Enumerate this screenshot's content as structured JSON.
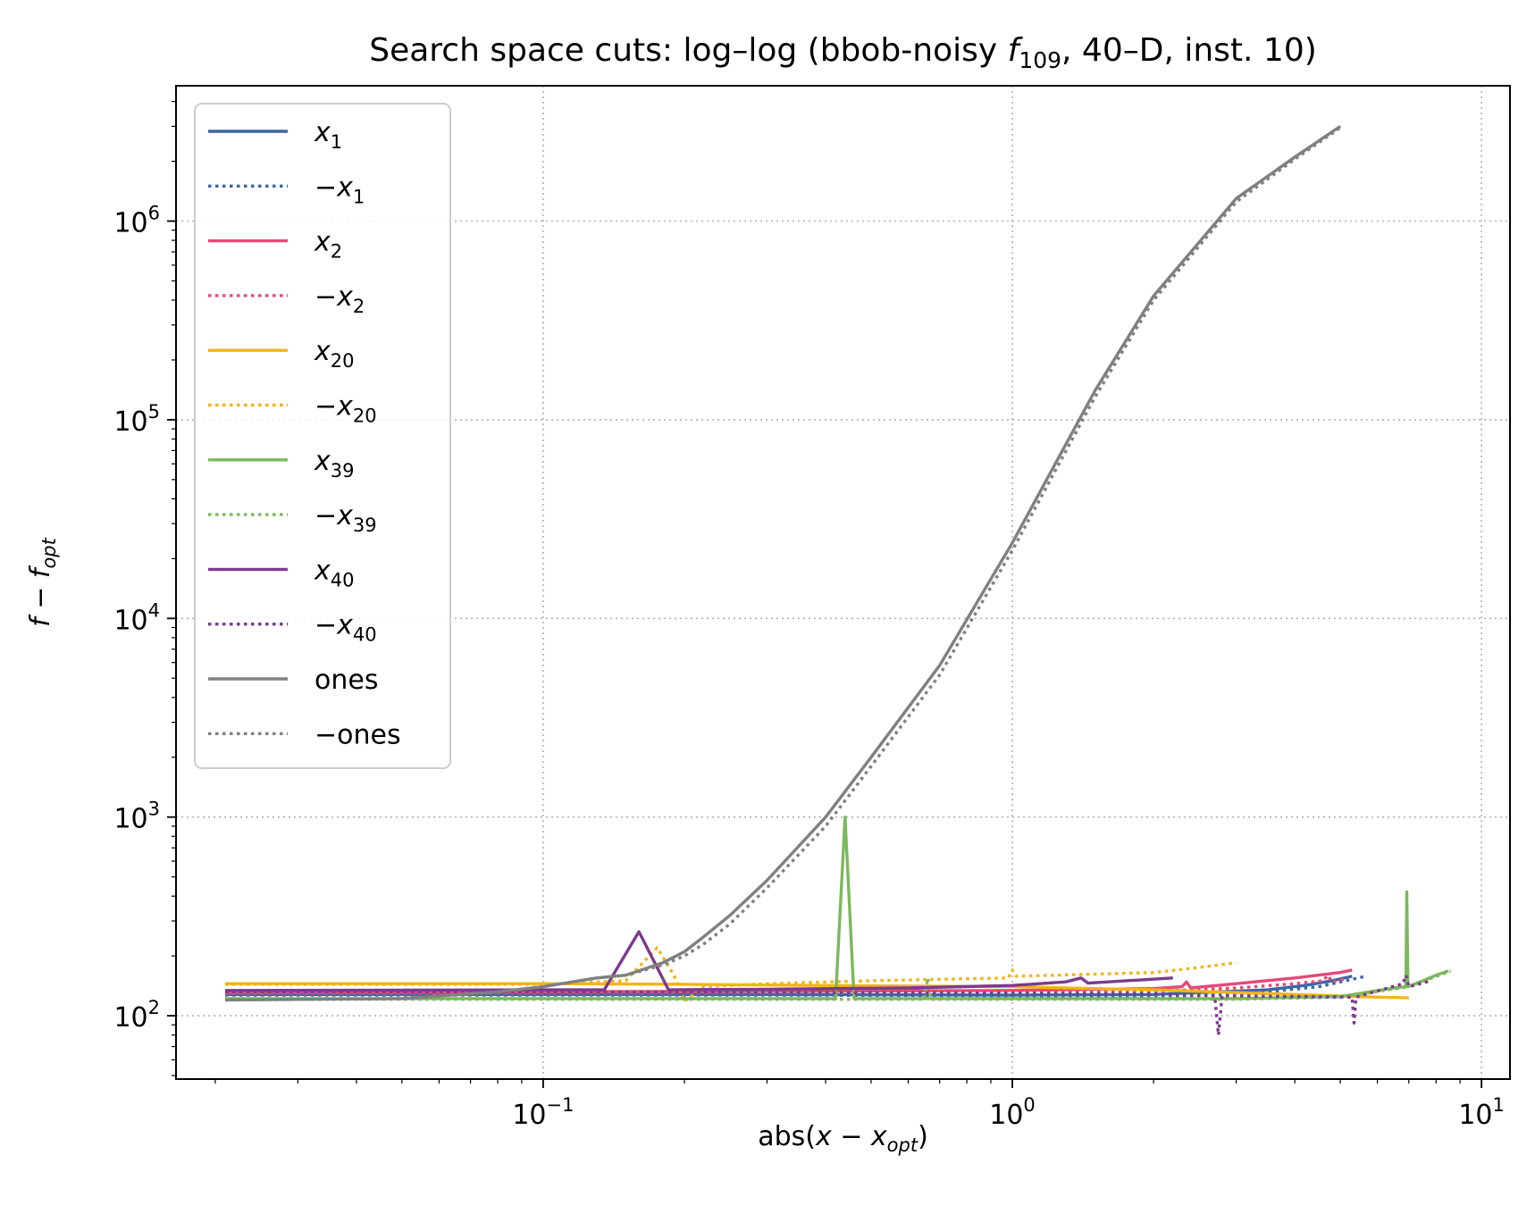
{
  "chart_data": {
    "type": "line",
    "title": "Search space cuts: log–log (bbob-noisy f109, 40–D, inst. 10)",
    "title_parts": {
      "before": "Search space cuts: log–log (bbob-noisy ",
      "f": "f",
      "sub": "109",
      "after": ", 40–D, inst. 10)"
    },
    "xlabel": {
      "pre": "abs(",
      "main": "x − x",
      "sub": "opt",
      "post": ")"
    },
    "ylabel": {
      "main": "f − f",
      "sub": "opt"
    },
    "xscale": "log",
    "yscale": "log",
    "xlim": [
      0.0165,
      11.5
    ],
    "ylim": [
      48,
      4800000
    ],
    "xticks": [
      {
        "value": 0.1,
        "base": "10",
        "exp": "−1"
      },
      {
        "value": 1,
        "base": "10",
        "exp": "0"
      },
      {
        "value": 10,
        "base": "10",
        "exp": "1"
      }
    ],
    "yticks": [
      {
        "value": 100,
        "base": "10",
        "exp": "2"
      },
      {
        "value": 1000,
        "base": "10",
        "exp": "3"
      },
      {
        "value": 10000,
        "base": "10",
        "exp": "4"
      },
      {
        "value": 100000,
        "base": "10",
        "exp": "5"
      },
      {
        "value": 1000000,
        "base": "10",
        "exp": "6"
      }
    ],
    "grid": true,
    "legend_position": "top-left",
    "series": [
      {
        "name": "x",
        "sub": "1",
        "neg": false,
        "color": "#3b67a8",
        "dash": "solid",
        "points": [
          [
            0.021,
            128
          ],
          [
            0.05,
            128
          ],
          [
            0.1,
            128
          ],
          [
            0.3,
            128
          ],
          [
            1,
            127
          ],
          [
            2,
            128
          ],
          [
            3.5,
            135
          ],
          [
            4.2,
            142
          ],
          [
            4.8,
            150
          ],
          [
            5.3,
            158
          ]
        ]
      },
      {
        "name": "x",
        "sub": "1",
        "neg": true,
        "color": "#3b67a8",
        "dash": "dotted",
        "points": [
          [
            0.021,
            127
          ],
          [
            0.05,
            127
          ],
          [
            0.1,
            127
          ],
          [
            0.3,
            127
          ],
          [
            1,
            126
          ],
          [
            2,
            124
          ],
          [
            3,
            128
          ],
          [
            3.5,
            132
          ],
          [
            4.5,
            140
          ],
          [
            5,
            148
          ],
          [
            5.6,
            157
          ]
        ]
      },
      {
        "name": "x",
        "sub": "2",
        "neg": false,
        "color": "#e34a77",
        "dash": "solid",
        "points": [
          [
            0.021,
            131
          ],
          [
            0.1,
            132
          ],
          [
            0.3,
            133
          ],
          [
            1,
            134
          ],
          [
            2,
            137
          ],
          [
            2.3,
            140
          ],
          [
            2.35,
            148
          ],
          [
            2.4,
            138
          ],
          [
            3,
            145
          ],
          [
            4,
            155
          ],
          [
            5,
            165
          ],
          [
            5.3,
            170
          ]
        ]
      },
      {
        "name": "x",
        "sub": "2",
        "neg": true,
        "color": "#e34a77",
        "dash": "dotted",
        "points": [
          [
            0.021,
            130
          ],
          [
            0.1,
            130
          ],
          [
            0.3,
            130
          ],
          [
            1,
            131
          ],
          [
            2,
            133
          ],
          [
            3,
            138
          ],
          [
            4,
            145
          ],
          [
            4.6,
            150
          ],
          [
            4.7,
            160
          ],
          [
            4.8,
            148
          ],
          [
            5.2,
            155
          ]
        ]
      },
      {
        "name": "x",
        "sub": "20",
        "neg": false,
        "color": "#f2b418",
        "dash": "solid",
        "points": [
          [
            0.021,
            145
          ],
          [
            0.1,
            145
          ],
          [
            0.2,
            144
          ],
          [
            0.4,
            142
          ],
          [
            1,
            140
          ],
          [
            2,
            135
          ],
          [
            4,
            128
          ],
          [
            6,
            124
          ],
          [
            7,
            123
          ]
        ]
      },
      {
        "name": "x",
        "sub": "20",
        "neg": true,
        "color": "#f2b418",
        "dash": "dotted",
        "points": [
          [
            0.021,
            144
          ],
          [
            0.1,
            144
          ],
          [
            0.15,
            150
          ],
          [
            0.175,
            220
          ],
          [
            0.19,
            160
          ],
          [
            0.2,
            118
          ],
          [
            0.22,
            140
          ],
          [
            0.3,
            145
          ],
          [
            0.5,
            150
          ],
          [
            0.98,
            155
          ],
          [
            1,
            170
          ],
          [
            1.02,
            158
          ],
          [
            2,
            165
          ],
          [
            2.5,
            175
          ],
          [
            3,
            185
          ]
        ]
      },
      {
        "name": "x",
        "sub": "39",
        "neg": false,
        "color": "#7cb85c",
        "dash": "solid",
        "points": [
          [
            0.021,
            122
          ],
          [
            0.1,
            122
          ],
          [
            0.3,
            122
          ],
          [
            0.42,
            122
          ],
          [
            0.44,
            1000
          ],
          [
            0.46,
            122
          ],
          [
            1,
            122
          ],
          [
            3,
            122
          ],
          [
            5,
            125
          ],
          [
            6.5,
            138
          ],
          [
            6.9,
            140
          ],
          [
            6.93,
            420
          ],
          [
            6.97,
            140
          ],
          [
            7.5,
            150
          ],
          [
            8,
            160
          ],
          [
            8.5,
            168
          ]
        ]
      },
      {
        "name": "x",
        "sub": "39",
        "neg": true,
        "color": "#7cb85c",
        "dash": "dotted",
        "points": [
          [
            0.021,
            121
          ],
          [
            0.1,
            121
          ],
          [
            0.3,
            121
          ],
          [
            0.65,
            121
          ],
          [
            0.66,
            155
          ],
          [
            0.67,
            121
          ],
          [
            1,
            121
          ],
          [
            3,
            121
          ],
          [
            5,
            124
          ],
          [
            7,
            140
          ],
          [
            8.6,
            168
          ]
        ]
      },
      {
        "name": "x",
        "sub": "40",
        "neg": false,
        "color": "#7b3a8e",
        "dash": "solid",
        "points": [
          [
            0.021,
            134
          ],
          [
            0.1,
            135
          ],
          [
            0.135,
            135
          ],
          [
            0.16,
            265
          ],
          [
            0.185,
            135
          ],
          [
            0.3,
            136
          ],
          [
            0.6,
            138
          ],
          [
            1,
            142
          ],
          [
            1.3,
            148
          ],
          [
            1.4,
            155
          ],
          [
            1.45,
            146
          ],
          [
            2.2,
            155
          ]
        ]
      },
      {
        "name": "x",
        "sub": "40",
        "neg": true,
        "color": "#7b3a8e",
        "dash": "dotted",
        "points": [
          [
            0.021,
            132
          ],
          [
            0.1,
            132
          ],
          [
            0.3,
            131
          ],
          [
            1,
            130
          ],
          [
            2,
            129
          ],
          [
            2.7,
            126
          ],
          [
            2.75,
            80
          ],
          [
            2.8,
            126
          ],
          [
            4,
            125
          ],
          [
            5.3,
            124
          ],
          [
            5.35,
            92
          ],
          [
            5.4,
            124
          ],
          [
            6.8,
            145
          ],
          [
            6.9,
            160
          ],
          [
            7,
            140
          ],
          [
            7.8,
            150
          ]
        ]
      },
      {
        "name": "ones",
        "sub": "",
        "neg": false,
        "color": "#808080",
        "dash": "solid",
        "points": [
          [
            0.021,
            120
          ],
          [
            0.05,
            122
          ],
          [
            0.08,
            132
          ],
          [
            0.1,
            140
          ],
          [
            0.13,
            155
          ],
          [
            0.15,
            160
          ],
          [
            0.18,
            185
          ],
          [
            0.2,
            210
          ],
          [
            0.22,
            250
          ],
          [
            0.25,
            320
          ],
          [
            0.3,
            480
          ],
          [
            0.4,
            1000
          ],
          [
            0.5,
            2000
          ],
          [
            0.7,
            5800
          ],
          [
            1,
            24000
          ],
          [
            1.5,
            140000
          ],
          [
            2,
            420000
          ],
          [
            3,
            1300000
          ],
          [
            4,
            2100000
          ],
          [
            5,
            3000000
          ]
        ]
      },
      {
        "name": "ones",
        "sub": "",
        "neg": true,
        "color": "#808080",
        "dash": "dotted",
        "points": [
          [
            0.021,
            120
          ],
          [
            0.05,
            122
          ],
          [
            0.08,
            132
          ],
          [
            0.1,
            140
          ],
          [
            0.13,
            155
          ],
          [
            0.15,
            160
          ],
          [
            0.18,
            180
          ],
          [
            0.2,
            200
          ],
          [
            0.22,
            230
          ],
          [
            0.25,
            290
          ],
          [
            0.3,
            440
          ],
          [
            0.4,
            900
          ],
          [
            0.5,
            1800
          ],
          [
            0.7,
            5200
          ],
          [
            1,
            22000
          ],
          [
            1.5,
            130000
          ],
          [
            2,
            400000
          ],
          [
            3,
            1250000
          ],
          [
            4,
            2050000
          ],
          [
            5,
            2950000
          ]
        ]
      }
    ]
  }
}
